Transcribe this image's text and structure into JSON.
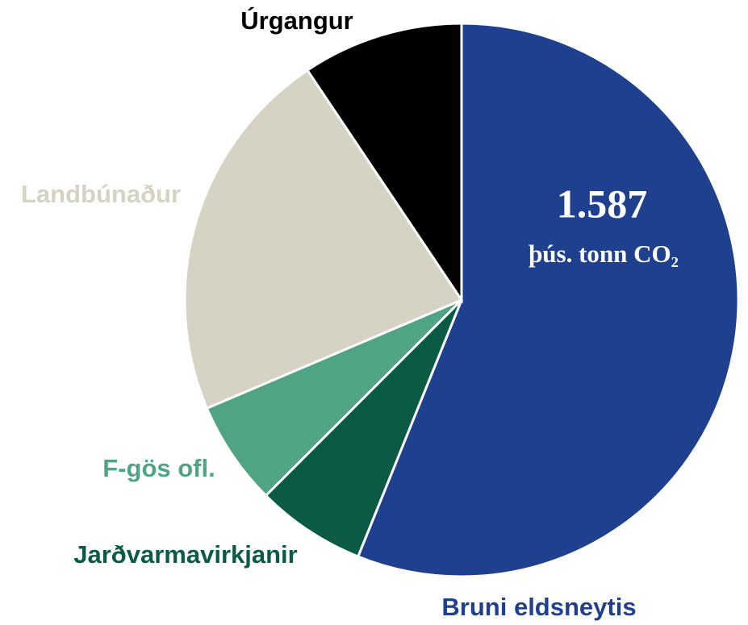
{
  "chart_data": {
    "type": "pie",
    "categories": [
      "Bruni eldsneytis",
      "Jarðvarmavirkjanir",
      "F-gös ofl.",
      "Landbúnaður",
      "Úrgangur"
    ],
    "values": [
      56.1,
      6.4,
      6.1,
      22,
      9.4
    ],
    "colors": [
      "#1f3f8f",
      "#0b5a45",
      "#4fa484",
      "#d6d3c4",
      "#000000"
    ],
    "label_colors": [
      "#1f3f8f",
      "#0b5a45",
      "#4fa484",
      "#d6d3c4",
      "#000000"
    ],
    "annotations": [
      "1.587",
      "þús. tonn CO₂"
    ]
  }
}
